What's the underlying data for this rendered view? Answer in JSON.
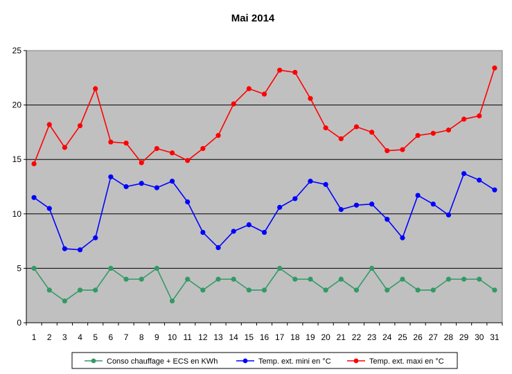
{
  "chart_data": {
    "type": "line",
    "title": "Mai 2014",
    "xlabel": "",
    "ylabel": "",
    "x": [
      1,
      2,
      3,
      4,
      5,
      6,
      7,
      8,
      9,
      10,
      11,
      12,
      13,
      14,
      15,
      16,
      17,
      18,
      19,
      20,
      21,
      22,
      23,
      24,
      25,
      26,
      27,
      28,
      29,
      30,
      31
    ],
    "ylim": [
      0,
      25
    ],
    "yticks": [
      0,
      5,
      10,
      15,
      20,
      25
    ],
    "grid": true,
    "legend_position": "bottom",
    "plot_background": "#c0c0c0",
    "series": [
      {
        "name": "Conso chauffage + ECS en KWh",
        "color": "#339966",
        "values": [
          5,
          3,
          2,
          3,
          3,
          5,
          4,
          4,
          5,
          2,
          4,
          3,
          4,
          4,
          3,
          3,
          5,
          4,
          4,
          3,
          4,
          3,
          5,
          3,
          4,
          3,
          3,
          4,
          4,
          4,
          3
        ]
      },
      {
        "name": "Temp. ext. mini en °C",
        "color": "#0000ff",
        "values": [
          11.5,
          10.5,
          6.8,
          6.7,
          7.8,
          13.4,
          12.5,
          12.8,
          12.4,
          13.0,
          11.1,
          8.3,
          6.9,
          8.4,
          9.0,
          8.3,
          10.6,
          11.4,
          13.0,
          12.7,
          10.4,
          10.8,
          10.9,
          9.5,
          7.8,
          11.7,
          10.9,
          9.9,
          13.7,
          13.1,
          12.2
        ]
      },
      {
        "name": "Temp. ext. maxi en °C",
        "color": "#ff0000",
        "values": [
          14.6,
          18.2,
          16.1,
          18.1,
          21.5,
          16.6,
          16.5,
          14.7,
          16.0,
          15.6,
          14.9,
          16.0,
          17.2,
          20.1,
          21.5,
          21.0,
          23.2,
          23.0,
          20.6,
          17.9,
          16.9,
          18.0,
          17.5,
          15.8,
          15.9,
          17.2,
          17.4,
          17.7,
          18.7,
          19.0,
          23.4
        ]
      }
    ]
  }
}
